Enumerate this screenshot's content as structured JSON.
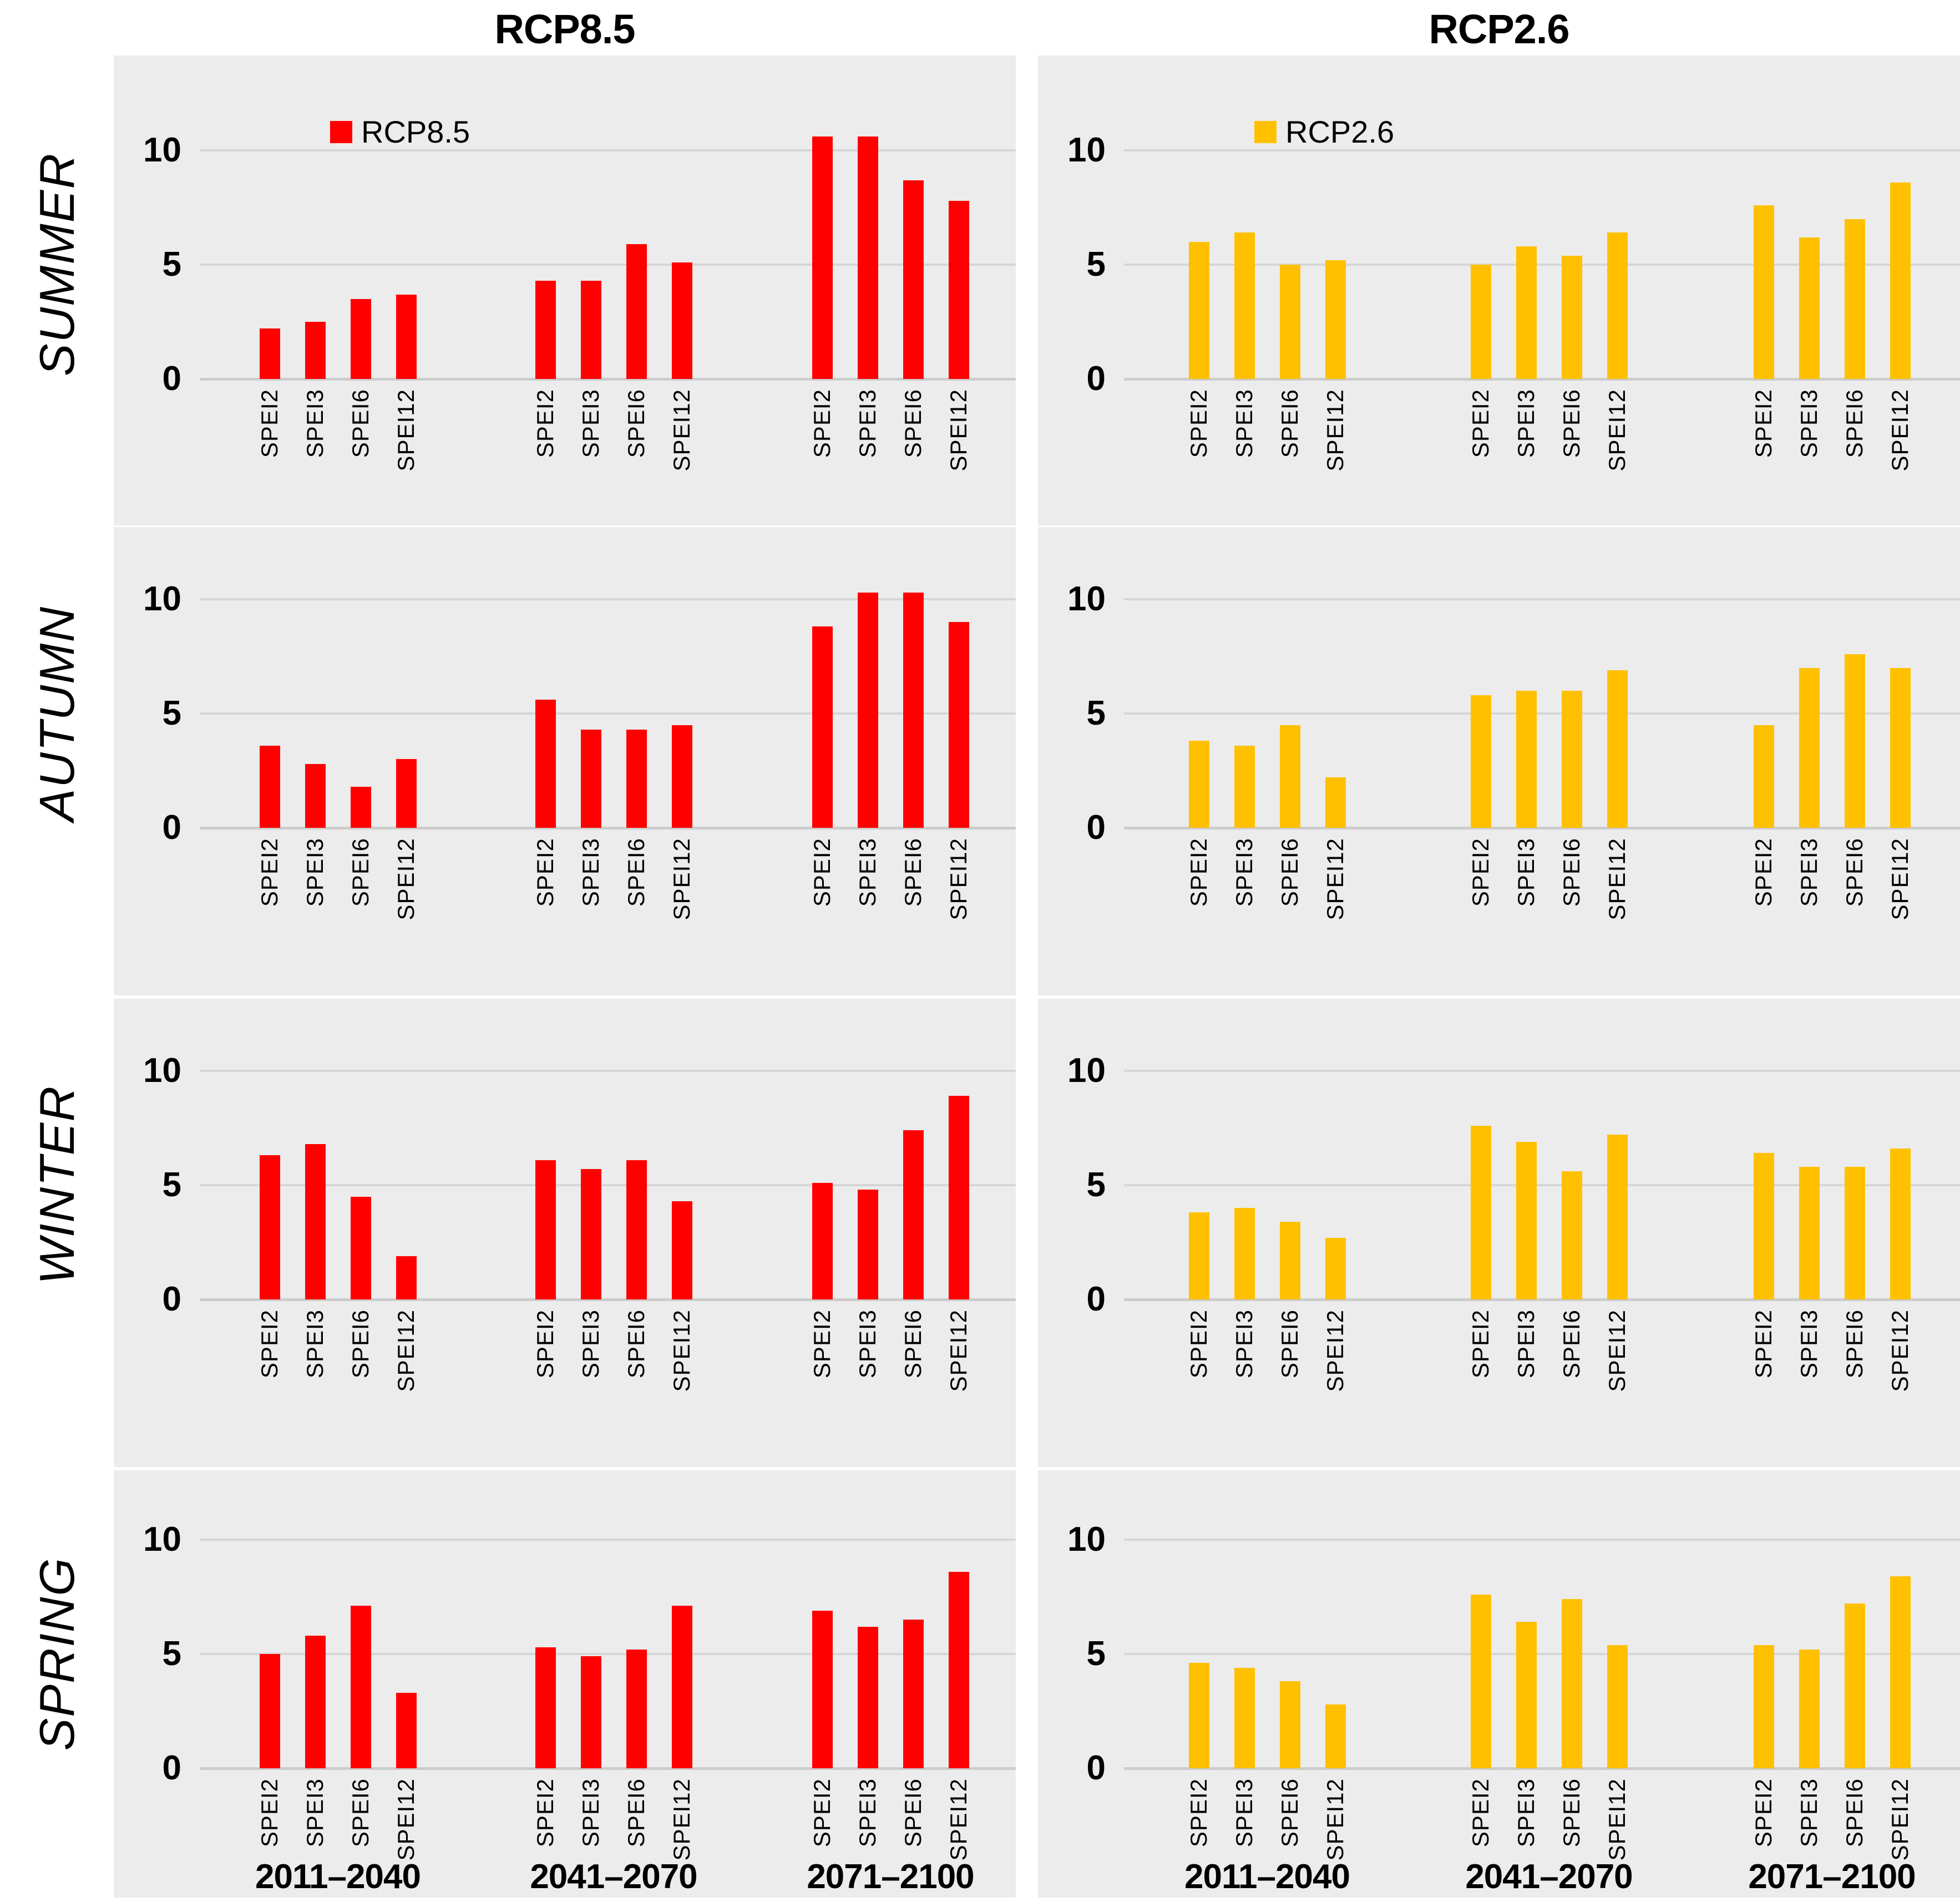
{
  "header": {
    "left_title": "RCP8.5",
    "right_title": "RCP2.6"
  },
  "legend_labels": {
    "rcp85": "RCP8.5",
    "rcp26": "RCP2.6"
  },
  "colors": {
    "rcp85": "#FE0000",
    "rcp26": "#FFC000",
    "panel_bg": "#ECECEC",
    "gridline": "#D6D6D6"
  },
  "chart_data": {
    "type": "bar",
    "layout": "4 season rows x 2 scenario columns, grouped bars",
    "seasons": [
      "SUMMER",
      "AUTUMN",
      "WINTER",
      "SPRING"
    ],
    "periods": [
      "2011–2040",
      "2041–2070",
      "2071–2100"
    ],
    "spei_labels": [
      "SPEI2",
      "SPEI3",
      "SPEI6",
      "SPEI12"
    ],
    "yticks": [
      0,
      5,
      10
    ],
    "ylim": [
      0,
      11.2
    ],
    "grid": true,
    "legend_position": "top-left of SUMMER panels only",
    "series": [
      {
        "name": "RCP8.5",
        "color": "#FE0000",
        "values_by_season": {
          "SUMMER": [
            [
              2.2,
              2.5,
              3.5,
              3.7
            ],
            [
              4.3,
              4.3,
              5.9,
              5.1
            ],
            [
              10.6,
              10.6,
              8.7,
              7.8
            ]
          ],
          "AUTUMN": [
            [
              3.6,
              2.8,
              1.8,
              3.0
            ],
            [
              5.6,
              4.3,
              4.3,
              4.5
            ],
            [
              8.8,
              10.3,
              10.3,
              9.0
            ]
          ],
          "WINTER": [
            [
              6.3,
              6.8,
              4.5,
              1.9
            ],
            [
              6.1,
              5.7,
              6.1,
              4.3
            ],
            [
              5.1,
              4.8,
              7.4,
              8.9
            ]
          ],
          "SPRING": [
            [
              5.0,
              5.8,
              7.1,
              3.3
            ],
            [
              5.3,
              4.9,
              5.2,
              7.1
            ],
            [
              6.9,
              6.2,
              6.5,
              8.6
            ]
          ]
        }
      },
      {
        "name": "RCP2.6",
        "color": "#FFC000",
        "values_by_season": {
          "SUMMER": [
            [
              6.0,
              6.4,
              5.0,
              5.2
            ],
            [
              5.0,
              5.8,
              5.4,
              6.4
            ],
            [
              7.6,
              6.2,
              7.0,
              8.6
            ]
          ],
          "AUTUMN": [
            [
              3.8,
              3.6,
              4.5,
              2.2
            ],
            [
              5.8,
              6.0,
              6.0,
              6.9
            ],
            [
              4.5,
              7.0,
              7.6,
              7.0
            ]
          ],
          "WINTER": [
            [
              3.8,
              4.0,
              3.4,
              2.7
            ],
            [
              7.6,
              6.9,
              5.6,
              7.2
            ],
            [
              6.4,
              5.8,
              5.8,
              6.6
            ]
          ],
          "SPRING": [
            [
              4.6,
              4.4,
              3.8,
              2.8
            ],
            [
              7.6,
              6.4,
              7.4,
              5.4
            ],
            [
              5.4,
              5.2,
              7.2,
              8.4
            ]
          ]
        }
      }
    ]
  }
}
